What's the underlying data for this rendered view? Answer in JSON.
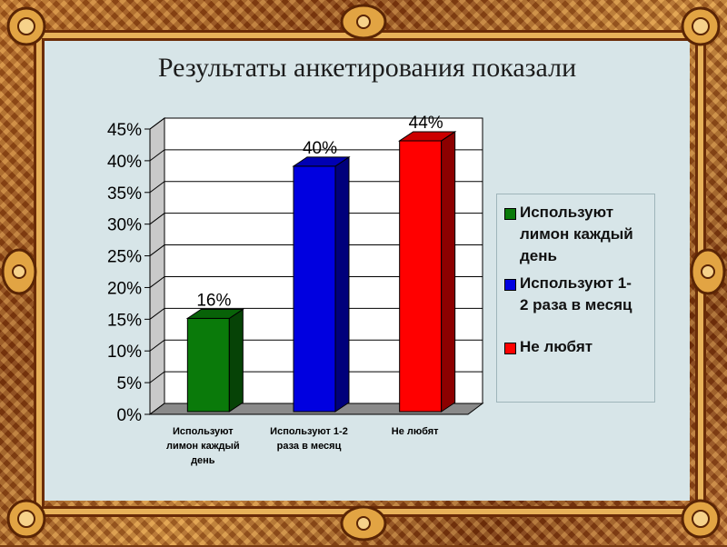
{
  "title": "Результаты анкетирования показали",
  "chart_data": {
    "type": "bar",
    "categories": [
      "Используют лимон каждый день",
      "Используют 1-2 раза в месяц",
      "Не любят"
    ],
    "category_labels": [
      [
        "Используют",
        "лимон каждый",
        "день"
      ],
      [
        "Используют 1-2",
        "раза в месяц"
      ],
      [
        "Не любят"
      ]
    ],
    "values": [
      16,
      40,
      44
    ],
    "data_labels": [
      "16%",
      "40%",
      "44%"
    ],
    "colors": [
      "#0a7a0a",
      "#0000e0",
      "#ff0000"
    ],
    "yticks": [
      "0%",
      "5%",
      "10%",
      "15%",
      "20%",
      "25%",
      "30%",
      "35%",
      "40%",
      "45%"
    ],
    "ylim": [
      0,
      45
    ],
    "grid": true,
    "legend_position": "right",
    "legend": [
      {
        "lines": [
          "Используют",
          "лимон каждый",
          "день"
        ],
        "color": "#0a7a0a"
      },
      {
        "lines": [
          "Используют 1-",
          "2 раза в месяц"
        ],
        "color": "#0000e0"
      },
      {
        "lines": [
          "Не любят"
        ],
        "color": "#ff0000"
      }
    ]
  }
}
